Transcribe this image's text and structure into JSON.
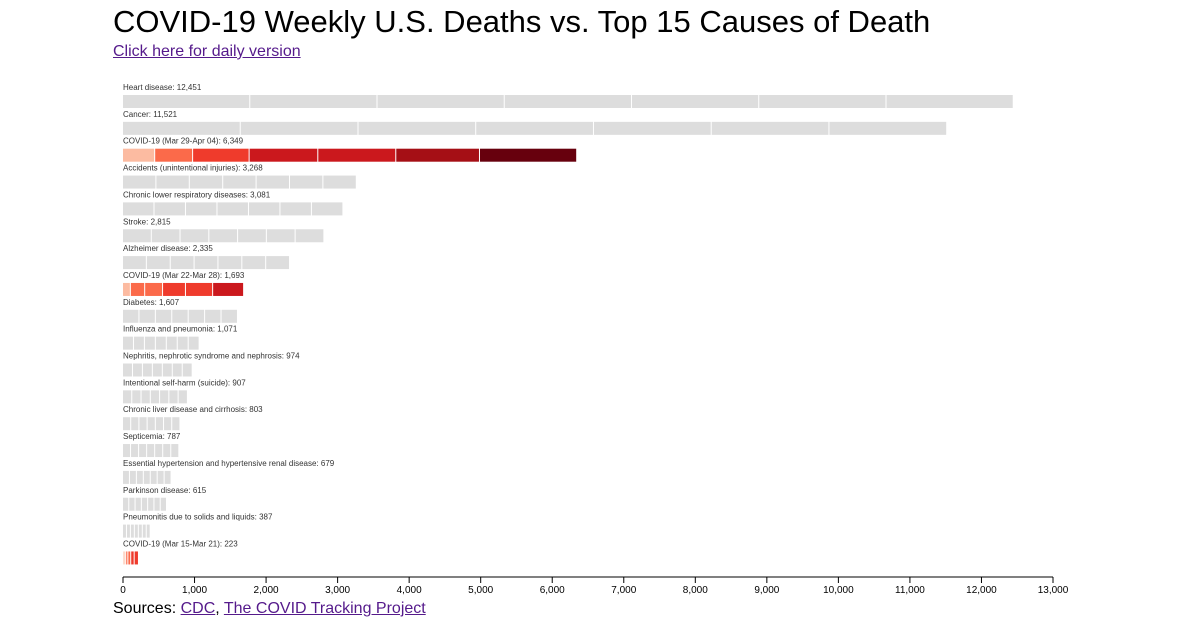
{
  "title": "COVID-19 Weekly U.S. Deaths vs. Top 15 Causes of Death",
  "daily_link": "Click here for daily version",
  "sources": {
    "label": "Sources:",
    "links": [
      "CDC",
      "The COVID Tracking Project"
    ],
    "separator": ","
  },
  "colors": {
    "other_cause": "#dddddd",
    "covid_scale": [
      "#fcbba1",
      "#fb6a4a",
      "#ef3b2c",
      "#cb181d",
      "#a50f15",
      "#67000d"
    ]
  },
  "chart_data": {
    "type": "bar",
    "orientation": "horizontal",
    "xlim": [
      0,
      13000
    ],
    "x_ticks": [
      0,
      1000,
      2000,
      3000,
      4000,
      5000,
      6000,
      7000,
      8000,
      9000,
      10000,
      11000,
      12000,
      13000
    ],
    "x_tick_labels": [
      "0",
      "1,000",
      "2,000",
      "3,000",
      "4,000",
      "5,000",
      "6,000",
      "7,000",
      "8,000",
      "9,000",
      "10,000",
      "11,000",
      "12,000",
      "13,000"
    ],
    "bars": [
      {
        "label": "Heart disease: 12,451",
        "value": 12451,
        "covid": false
      },
      {
        "label": "Cancer: 11,521",
        "value": 11521,
        "covid": false
      },
      {
        "label": "COVID-19 (Mar 29-Apr 04): 6,349",
        "value": 6349,
        "covid": true,
        "segments": [
          450,
          530,
          790,
          960,
          1090,
          1170,
          1359
        ]
      },
      {
        "label": "Accidents (unintentional injuries): 3,268",
        "value": 3268,
        "covid": false
      },
      {
        "label": "Chronic lower respiratory diseases: 3,081",
        "value": 3081,
        "covid": false
      },
      {
        "label": "Stroke: 2,815",
        "value": 2815,
        "covid": false
      },
      {
        "label": "Alzheimer disease: 2,335",
        "value": 2335,
        "covid": false
      },
      {
        "label": "COVID-19 (Mar 22-Mar 28): 1,693",
        "value": 1693,
        "covid": true,
        "segments": [
          110,
          200,
          250,
          320,
          380,
          433
        ]
      },
      {
        "label": "Diabetes: 1,607",
        "value": 1607,
        "covid": false
      },
      {
        "label": "Influenza and pneumonia: 1,071",
        "value": 1071,
        "covid": false
      },
      {
        "label": "Nephritis, nephrotic syndrome and nephrosis: 974",
        "value": 974,
        "covid": false
      },
      {
        "label": "Intentional self-harm (suicide): 907",
        "value": 907,
        "covid": false
      },
      {
        "label": "Chronic liver disease and cirrhosis: 803",
        "value": 803,
        "covid": false
      },
      {
        "label": "Septicemia: 787",
        "value": 787,
        "covid": false
      },
      {
        "label": "Essential hypertension and hypertensive renal disease: 679",
        "value": 679,
        "covid": false
      },
      {
        "label": "Parkinson disease: 615",
        "value": 615,
        "covid": false
      },
      {
        "label": "Pneumonitis due to solids and liquids: 387",
        "value": 387,
        "covid": false
      },
      {
        "label": "COVID-19 (Mar 15-Mar 21): 223",
        "value": 223,
        "covid": true,
        "segments": [
          20,
          25,
          30,
          40,
          48,
          60
        ]
      }
    ]
  }
}
